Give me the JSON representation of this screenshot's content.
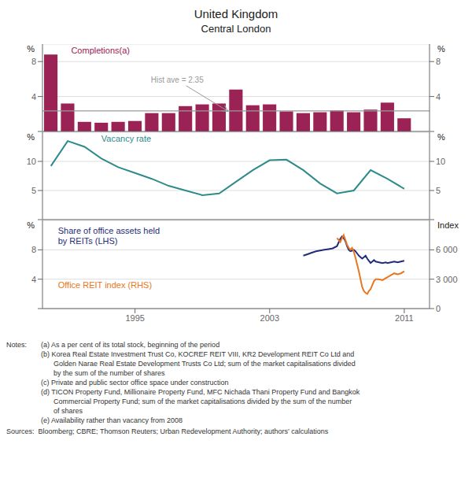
{
  "chart_data": [
    {
      "type": "bar",
      "title": "United Kingdom",
      "subtitle": "Central London",
      "x": [
        1990,
        1991,
        1992,
        1993,
        1994,
        1995,
        1996,
        1997,
        1998,
        1999,
        2000,
        2001,
        2002,
        2003,
        2004,
        2005,
        2006,
        2007,
        2008,
        2009,
        2010,
        2011
      ],
      "series": [
        {
          "name": "Completions(a)",
          "color": "#9B2254",
          "values": [
            8.8,
            3.2,
            1.1,
            1.0,
            1.1,
            1.2,
            2.1,
            2.1,
            2.9,
            3.1,
            3.2,
            4.8,
            3.0,
            3.1,
            2.3,
            2.1,
            2.2,
            2.4,
            2.2,
            2.5,
            3.3,
            1.5
          ]
        }
      ],
      "annotations": [
        {
          "text": "Hist ave = 2.35",
          "y": 2.35,
          "color": "#999999"
        }
      ],
      "xlim": [
        1989.5,
        2012.5
      ],
      "ylim": [
        0,
        10
      ],
      "yticks": [
        {
          "value": 0,
          "label": ""
        },
        4,
        8
      ],
      "ylabel": "%",
      "y2lim": [
        0,
        10
      ],
      "y2ticks": [
        {
          "value": 0,
          "label": ""
        },
        4,
        8
      ],
      "y2label": "%",
      "grid": true,
      "tick_labels": "y"
    },
    {
      "type": "line",
      "x": [
        1990,
        1991,
        1992,
        1993,
        1994,
        1995,
        1996,
        1997,
        1998,
        1999,
        2000,
        2001,
        2002,
        2003,
        2004,
        2005,
        2006,
        2007,
        2008,
        2009,
        2010,
        2011
      ],
      "series": [
        {
          "name": "Vacancy rate",
          "color": "#2E8B8B",
          "values": [
            9.2,
            13.5,
            12.5,
            10.5,
            9.0,
            8.0,
            7.0,
            5.8,
            5.0,
            4.2,
            4.5,
            6.5,
            8.5,
            10.2,
            10.3,
            8.5,
            6.2,
            4.5,
            5.0,
            8.5,
            7.0,
            5.3
          ]
        }
      ],
      "xlim": [
        1989.5,
        2012.5
      ],
      "ylim": [
        0,
        15
      ],
      "yticks": [
        {
          "value": 0,
          "label": ""
        },
        5,
        10
      ],
      "ylabel": "%",
      "y2lim": [
        0,
        15
      ],
      "y2ticks": [
        {
          "value": 0,
          "label": ""
        },
        5,
        10
      ],
      "y2label": "%",
      "grid": true,
      "tick_labels": "y"
    },
    {
      "type": "line",
      "series": [
        {
          "name": "Share of office assets held by REITs (LHS)",
          "color": "#1F2D7B",
          "x": [
            2005.0,
            2005.25,
            2005.5,
            2005.75,
            2006.0,
            2006.25,
            2006.5,
            2006.75,
            2007.0,
            2007.1,
            2007.2,
            2007.3,
            2007.4,
            2007.5,
            2007.6,
            2007.7,
            2007.8,
            2007.9,
            2008.0,
            2008.1,
            2008.2,
            2008.3,
            2008.4,
            2008.5,
            2008.6,
            2008.7,
            2008.8,
            2008.9,
            2009.0,
            2009.1,
            2009.2,
            2009.3,
            2009.5,
            2009.7,
            2009.9,
            2010.0,
            2010.2,
            2010.4,
            2010.6,
            2010.8,
            2011.0
          ],
          "values": [
            7.2,
            7.4,
            7.6,
            7.8,
            7.9,
            8.0,
            8.1,
            8.2,
            8.5,
            9.0,
            9.5,
            9.8,
            9.6,
            9.2,
            8.5,
            8.0,
            7.8,
            7.9,
            8.0,
            7.8,
            7.5,
            7.2,
            7.0,
            6.8,
            7.0,
            7.2,
            6.8,
            6.5,
            6.2,
            6.4,
            6.6,
            6.4,
            6.3,
            6.2,
            6.3,
            6.2,
            6.3,
            6.4,
            6.3,
            6.4,
            6.5
          ]
        },
        {
          "name": "Office REIT index (RHS)",
          "color": "#E87722",
          "axis": "y2",
          "x": [
            2007.0,
            2007.1,
            2007.2,
            2007.3,
            2007.4,
            2007.5,
            2007.6,
            2007.7,
            2007.8,
            2007.9,
            2008.0,
            2008.1,
            2008.2,
            2008.3,
            2008.4,
            2008.5,
            2008.6,
            2008.7,
            2008.8,
            2008.9,
            2009.0,
            2009.1,
            2009.2,
            2009.3,
            2009.5,
            2009.7,
            2009.9,
            2010.0,
            2010.2,
            2010.4,
            2010.6,
            2010.8,
            2011.0
          ],
          "values": [
            7200,
            7000,
            6800,
            7200,
            7500,
            7000,
            6500,
            6200,
            6000,
            6200,
            5800,
            5200,
            4500,
            3800,
            3000,
            2200,
            1800,
            1600,
            1500,
            1800,
            2000,
            2400,
            2800,
            3000,
            3000,
            2900,
            3100,
            3200,
            3400,
            3600,
            3500,
            3600,
            3800
          ]
        }
      ],
      "xlim": [
        1989.5,
        2012.5
      ],
      "xticks": [
        1995,
        2003,
        2011
      ],
      "ylim": [
        0,
        12
      ],
      "yticks": [
        {
          "value": 0,
          "label": ""
        },
        4,
        8
      ],
      "ylabel": "%",
      "y2lim": [
        0,
        9000
      ],
      "y2ticks": [
        0,
        {
          "value": 3000,
          "label": "3 000"
        },
        {
          "value": 6000,
          "label": "6 000"
        }
      ],
      "y2label": "Index",
      "grid": true,
      "notes_label": "Notes:",
      "notes": [
        "(a) As a per cent of its total stock, beginning of the period",
        "(b) Korea Real Estate Investment Trust Co, KOCREF REIT VIII, KR2 Development REIT Co Ltd and",
        "Golden Narae Real Estate Development Trusts Co Ltd; sum of the market capitalisations divided",
        "by the sum of the number of shares",
        "(c) Private and public sector office space under construction",
        "(d) TICON Property Fund, Millionaire Property Fund, MFC Nichada Thani Property Fund and Bangkok",
        "Commercial Property Fund; sum of the market capitalisations divided by the sum of the number",
        "of shares",
        "(e) Availability rather than vacancy from 2008"
      ],
      "sources": "Sources:  Bloomberg; CBRE; Thomson Reuters; Urban Redevelopment Authority; authors’ calculations"
    }
  ]
}
